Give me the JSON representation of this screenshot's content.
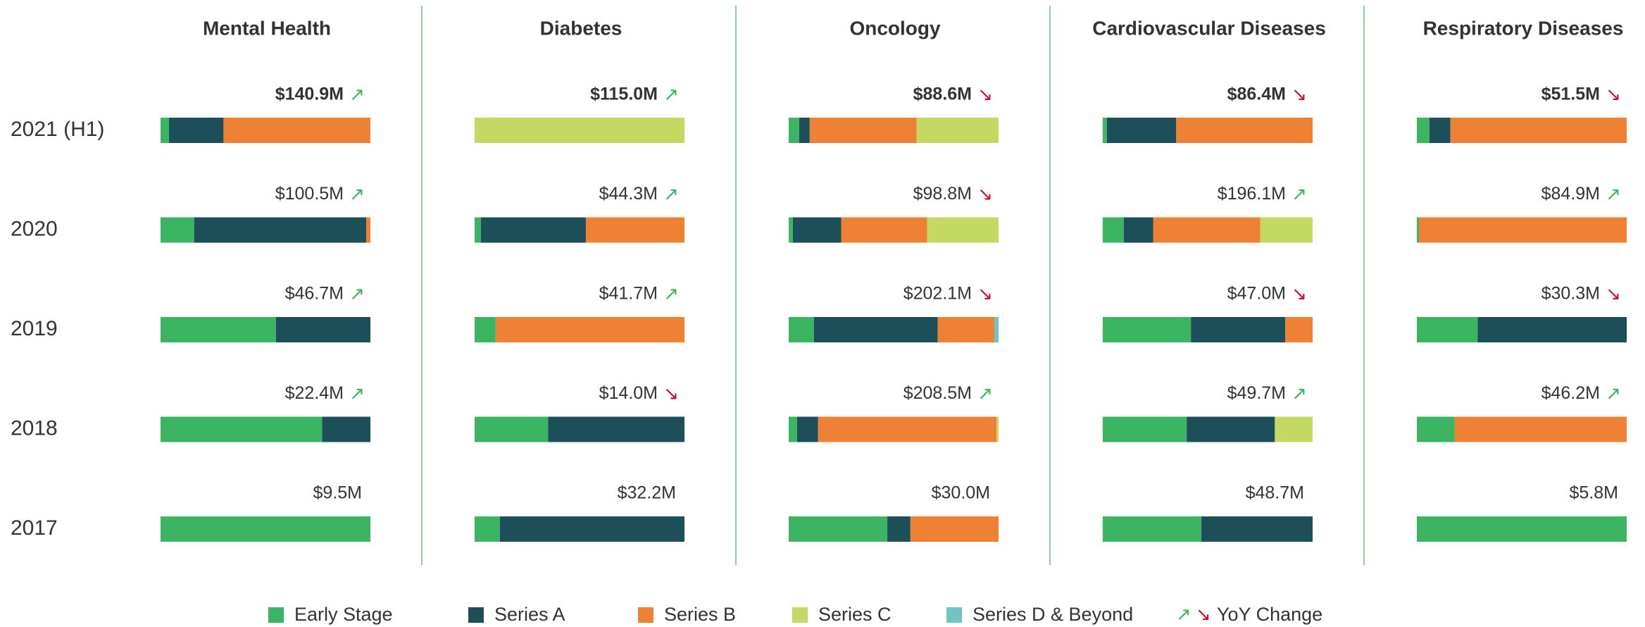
{
  "chart_data": {
    "type": "bar",
    "stacked": "percent",
    "categories": [
      "2021 (H1)",
      "2020",
      "2019",
      "2018",
      "2017"
    ],
    "series": [
      {
        "name": "Early Stage",
        "color": "#3cb563"
      },
      {
        "name": "Series A",
        "color": "#1c4f5a"
      },
      {
        "name": "Series B",
        "color": "#ee8133"
      },
      {
        "name": "Series C",
        "color": "#c4d962"
      },
      {
        "name": "Series D & Beyond",
        "color": "#6fc5c5"
      }
    ],
    "yoy": {
      "label": "YoY Change",
      "up": "↗",
      "down": "↘",
      "up_color": "#3cb563",
      "down_color": "#c8102e"
    },
    "panels": [
      {
        "title": "Mental Health",
        "series": [
          {
            "values": [
              4,
              16,
              55,
              77,
              100
            ]
          },
          {
            "values": [
              26,
              82,
              45,
              23,
              0
            ]
          },
          {
            "values": [
              70,
              2,
              0,
              0,
              0
            ]
          },
          {
            "values": [
              0,
              0,
              0,
              0,
              0
            ]
          },
          {
            "values": [
              0,
              0,
              0,
              0,
              0
            ]
          }
        ],
        "totals": [
          140.9,
          100.5,
          46.7,
          22.4,
          9.5
        ],
        "value_labels": [
          "$140.9M",
          "$100.5M",
          "$46.7M",
          "$22.4M",
          "$9.5M"
        ],
        "trend": [
          "↗",
          "↗",
          "↗",
          "↗",
          null
        ]
      },
      {
        "title": "Diabetes",
        "series": [
          {
            "values": [
              0,
              3,
              10,
              35,
              12
            ]
          },
          {
            "values": [
              0,
              50,
              0,
              65,
              88
            ]
          },
          {
            "values": [
              0,
              47,
              90,
              0,
              0
            ]
          },
          {
            "values": [
              100,
              0,
              0,
              0,
              0
            ]
          },
          {
            "values": [
              0,
              0,
              0,
              0,
              0
            ]
          }
        ],
        "totals": [
          115.0,
          44.3,
          41.7,
          14.0,
          32.2
        ],
        "value_labels": [
          "$115.0M",
          "$44.3M",
          "$41.7M",
          "$14.0M",
          "$32.2M"
        ],
        "trend": [
          "↗",
          "↗",
          "↗",
          "↘",
          null
        ]
      },
      {
        "title": "Oncology",
        "series": [
          {
            "values": [
              5,
              2,
              12,
              4,
              47
            ]
          },
          {
            "values": [
              5,
              23,
              59,
              10,
              11
            ]
          },
          {
            "values": [
              51,
              41,
              27,
              85,
              42
            ]
          },
          {
            "values": [
              39,
              34,
              0,
              1,
              0
            ]
          },
          {
            "values": [
              0,
              0,
              2,
              0,
              0
            ]
          }
        ],
        "totals": [
          88.6,
          98.8,
          202.1,
          208.5,
          30.0
        ],
        "value_labels": [
          "$88.6M",
          "$98.8M",
          "$202.1M",
          "$208.5M",
          "$30.0M"
        ],
        "trend": [
          "↘",
          "↘",
          "↘",
          "↗",
          null
        ]
      },
      {
        "title": "Cardiovascular Diseases",
        "series": [
          {
            "values": [
              2,
              10,
              42,
              40,
              47
            ]
          },
          {
            "values": [
              33,
              14,
              45,
              42,
              53
            ]
          },
          {
            "values": [
              65,
              51,
              13,
              0,
              0
            ]
          },
          {
            "values": [
              0,
              25,
              0,
              18,
              0
            ]
          },
          {
            "values": [
              0,
              0,
              0,
              0,
              0
            ]
          }
        ],
        "totals": [
          86.4,
          196.1,
          47.0,
          49.7,
          48.7
        ],
        "value_labels": [
          "$86.4M",
          "$196.1M",
          "$47.0M",
          "$49.7M",
          "$48.7M"
        ],
        "trend": [
          "↘",
          "↗",
          "↘",
          "↗",
          null
        ]
      },
      {
        "title": "Respiratory Diseases",
        "series": [
          {
            "values": [
              6,
              1,
              29,
              18,
              100
            ]
          },
          {
            "values": [
              10,
              0,
              71,
              0,
              0
            ]
          },
          {
            "values": [
              84,
              99,
              0,
              82,
              0
            ]
          },
          {
            "values": [
              0,
              0,
              0,
              0,
              0
            ]
          },
          {
            "values": [
              0,
              0,
              0,
              0,
              0
            ]
          }
        ],
        "totals": [
          51.5,
          84.9,
          30.3,
          46.2,
          5.8
        ],
        "value_labels": [
          "$51.5M",
          "$84.9M",
          "$30.3M",
          "$46.2M",
          "$5.8M"
        ],
        "trend": [
          "↘",
          "↗",
          "↘",
          "↗",
          null
        ]
      }
    ]
  }
}
